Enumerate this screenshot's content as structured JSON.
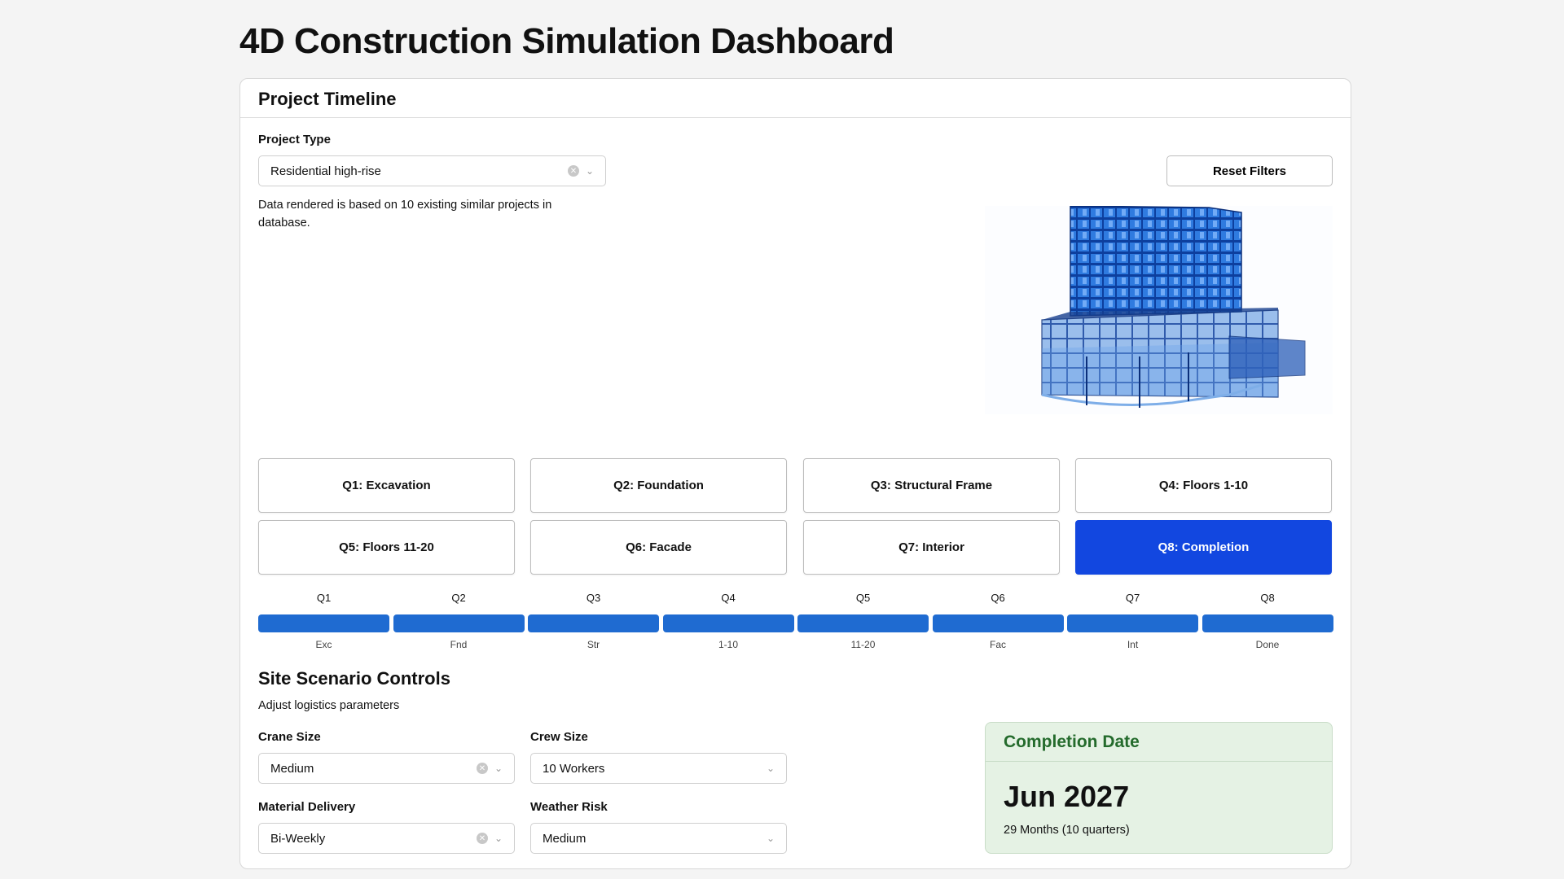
{
  "page": {
    "title": "4D Construction Simulation Dashboard"
  },
  "timeline": {
    "header": "Project Timeline",
    "project_type_label": "Project Type",
    "project_type_value": "Residential high-rise",
    "reset_label": "Reset Filters",
    "note": "Data rendered is based on 10 existing similar projects in database.",
    "phases": [
      "Q1: Excavation",
      "Q2: Foundation",
      "Q3: Structural Frame",
      "Q4: Floors 1-10",
      "Q5: Floors 11-20",
      "Q6: Facade",
      "Q7: Interior",
      "Q8: Completion"
    ],
    "active_phase": "Q8: Completion",
    "quarters": [
      {
        "q": "Q1",
        "short": "Exc",
        "progress": 1.0
      },
      {
        "q": "Q2",
        "short": "Fnd",
        "progress": 1.0
      },
      {
        "q": "Q3",
        "short": "Str",
        "progress": 1.0
      },
      {
        "q": "Q4",
        "short": "1-10",
        "progress": 1.0
      },
      {
        "q": "Q5",
        "short": "11-20",
        "progress": 1.0
      },
      {
        "q": "Q6",
        "short": "Fac",
        "progress": 1.0
      },
      {
        "q": "Q7",
        "short": "Int",
        "progress": 1.0
      },
      {
        "q": "Q8",
        "short": "Done",
        "progress": 1.0
      }
    ],
    "bar_color": "#1f6bd1",
    "active_color": "#1247e0"
  },
  "scenario": {
    "title": "Site Scenario Controls",
    "subtitle": "Adjust logistics parameters",
    "crane_label": "Crane Size",
    "crane_value": "Medium",
    "crew_label": "Crew Size",
    "crew_value": "10 Workers",
    "delivery_label": "Material Delivery",
    "delivery_value": "Bi-Weekly",
    "weather_label": "Weather Risk",
    "weather_value": "Medium"
  },
  "completion": {
    "header": "Completion Date",
    "date": "Jun 2027",
    "duration": "29 Months (10 quarters)",
    "accent": "#246b2c"
  }
}
